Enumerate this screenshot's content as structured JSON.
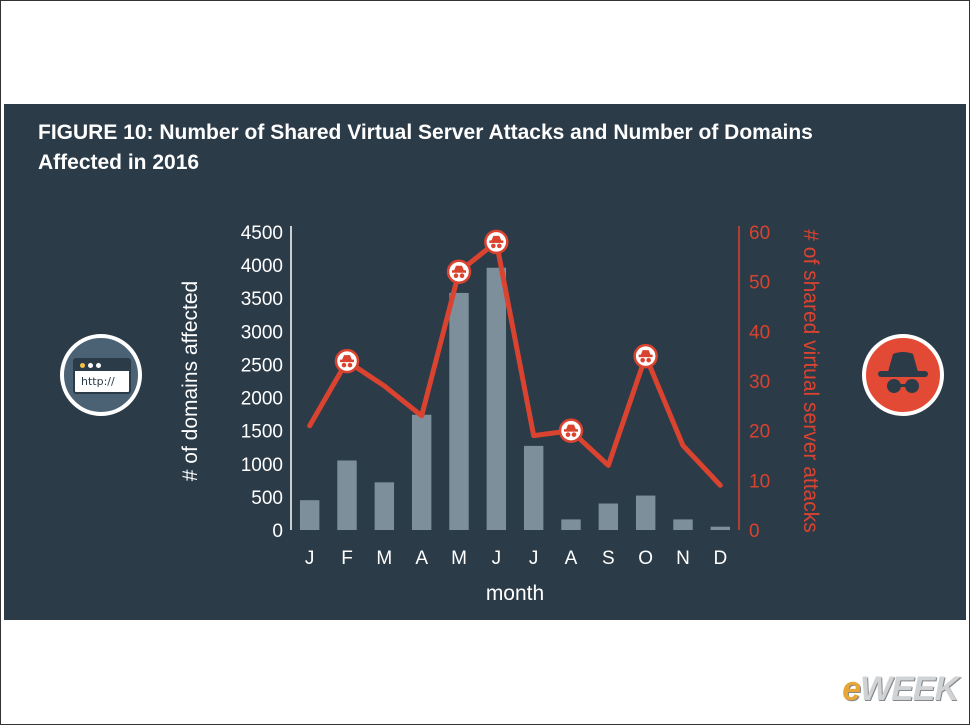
{
  "title": "FIGURE 10: Number of Shared Virtual Server Attacks and Number of Domains Affected in 2016",
  "left_icon": {
    "text": "http://",
    "icon": "browser-window-icon"
  },
  "right_icon": {
    "icon": "incognito-spy-icon"
  },
  "logo": {
    "prefix": "e",
    "rest": "WEEK"
  },
  "colors": {
    "background": "#2b3b48",
    "bars": "#7e8f9c",
    "line": "#d9432f",
    "text": "#ffffff",
    "right_axis": "#d9432f"
  },
  "chart_data": {
    "type": "bar+line",
    "categories": [
      "J",
      "F",
      "M",
      "A",
      "M",
      "J",
      "J",
      "A",
      "S",
      "O",
      "N",
      "D"
    ],
    "xlabel": "month",
    "series": [
      {
        "name": "# of domains affected",
        "type": "bar",
        "axis": "left",
        "values": [
          450,
          1050,
          720,
          1740,
          3580,
          3960,
          1270,
          160,
          400,
          520,
          160,
          50
        ]
      },
      {
        "name": "# of shared virtual server attacks",
        "type": "line",
        "axis": "right",
        "values": [
          21,
          34,
          29,
          23,
          52,
          58,
          19,
          20,
          13,
          35,
          17,
          9
        ],
        "markers": [
          1,
          4,
          5,
          7,
          9
        ]
      }
    ],
    "left_axis": {
      "label": "# of domains affected",
      "ylim": [
        0,
        4500
      ],
      "ticks": [
        "0",
        "500",
        "1000",
        "1500",
        "2000",
        "2500",
        "3000",
        "3500",
        "4000",
        "4500"
      ]
    },
    "right_axis": {
      "label": "# of shared virtual server attacks",
      "ylim": [
        0,
        60
      ],
      "ticks": [
        "0",
        "10",
        "20",
        "30",
        "40",
        "50",
        "60"
      ]
    }
  }
}
